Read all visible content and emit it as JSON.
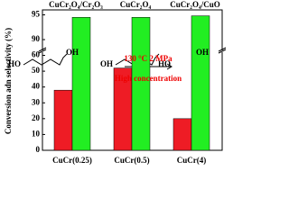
{
  "chart_data": {
    "type": "bar",
    "y_label": "Conversion adn selectivity (%)",
    "categories": [
      "CuCr(0.25)",
      "CuCr(0.5)",
      "CuCr(4)"
    ],
    "group_labels": [
      "CuCr₂O₄/Cr₂O₃",
      "CuCr₂O₄",
      "CuCr₂O₄/CuO"
    ],
    "series": [
      {
        "color": "#ee1c25",
        "values": [
          38,
          52,
          20
        ]
      },
      {
        "color": "#22ee22",
        "values": [
          94.5,
          94.5,
          94.8
        ]
      }
    ],
    "ylim": [
      0,
      96
    ],
    "ybreak": [
      62,
      88
    ],
    "yticks": [
      0,
      10,
      20,
      30,
      40,
      50,
      60,
      90,
      95
    ],
    "annotations": [
      "HO",
      "OH",
      "OH",
      "HO",
      "OH",
      "130 °C 2 MPa",
      "High concentration"
    ]
  }
}
